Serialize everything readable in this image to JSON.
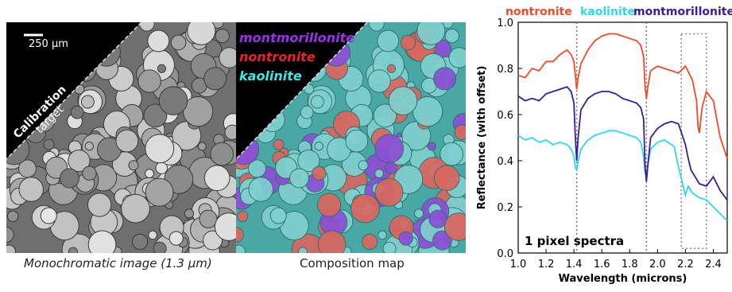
{
  "panels": {
    "mono": {
      "scale_bar": "250 µm",
      "calibration_line1": "Calibration",
      "calibration_line2": "target",
      "caption": "Monochromatic image (1.3 µm)"
    },
    "composition": {
      "legend": [
        "montmorillonite",
        "nontronite",
        "kaolinite"
      ],
      "legend_colors": [
        "#9b30e8",
        "#e8232a",
        "#40e6e6"
      ],
      "caption": "Composition map"
    }
  },
  "chart_data": {
    "type": "line",
    "title": "",
    "xlabel": "Wavelength (microns)",
    "ylabel": "Reflectance (with offset)",
    "xlim": [
      1.0,
      2.5
    ],
    "ylim": [
      0.0,
      1.0
    ],
    "xticks": [
      1.0,
      1.2,
      1.4,
      1.6,
      1.8,
      2.0,
      2.2,
      2.4
    ],
    "xtick_labels": [
      "1.0",
      "1.2",
      "1.4",
      "1.6",
      "1.8",
      "2.0",
      "2.2",
      "2.4"
    ],
    "yticks": [
      0.0,
      0.2,
      0.4,
      0.6,
      0.8,
      1.0
    ],
    "ytick_labels": [
      "0.0",
      "0.2",
      "0.4",
      "0.6",
      "0.8",
      "1.0"
    ],
    "annotation": "1 pixel spectra",
    "reference_lines": [
      1.42,
      1.92
    ],
    "highlight_box": {
      "x": [
        2.17,
        2.35
      ],
      "y": [
        0.02,
        0.95
      ]
    },
    "series": [
      {
        "name": "nontronite",
        "color": "#f24a2a",
        "x": [
          1.0,
          1.05,
          1.1,
          1.15,
          1.2,
          1.25,
          1.3,
          1.35,
          1.38,
          1.4,
          1.41,
          1.42,
          1.43,
          1.45,
          1.5,
          1.55,
          1.6,
          1.65,
          1.7,
          1.75,
          1.8,
          1.85,
          1.88,
          1.9,
          1.91,
          1.92,
          1.93,
          1.95,
          2.0,
          2.05,
          2.1,
          2.15,
          2.2,
          2.25,
          2.28,
          2.29,
          2.3,
          2.32,
          2.35,
          2.4,
          2.45,
          2.5
        ],
        "y": [
          0.77,
          0.76,
          0.8,
          0.79,
          0.83,
          0.83,
          0.86,
          0.88,
          0.86,
          0.83,
          0.77,
          0.71,
          0.76,
          0.82,
          0.88,
          0.92,
          0.94,
          0.95,
          0.95,
          0.94,
          0.93,
          0.92,
          0.9,
          0.85,
          0.72,
          0.67,
          0.72,
          0.79,
          0.81,
          0.8,
          0.79,
          0.78,
          0.81,
          0.75,
          0.66,
          0.55,
          0.52,
          0.63,
          0.7,
          0.66,
          0.5,
          0.41
        ]
      },
      {
        "name": "kaolinite",
        "color": "#31d6f0",
        "x": [
          1.0,
          1.05,
          1.1,
          1.15,
          1.2,
          1.25,
          1.3,
          1.35,
          1.38,
          1.4,
          1.41,
          1.42,
          1.43,
          1.45,
          1.5,
          1.55,
          1.6,
          1.65,
          1.7,
          1.75,
          1.8,
          1.85,
          1.88,
          1.9,
          1.91,
          1.92,
          1.93,
          1.95,
          2.0,
          2.05,
          2.1,
          2.12,
          2.14,
          2.16,
          2.18,
          2.2,
          2.22,
          2.25,
          2.3,
          2.35,
          2.4,
          2.45,
          2.5
        ],
        "y": [
          0.51,
          0.49,
          0.5,
          0.48,
          0.49,
          0.47,
          0.48,
          0.47,
          0.45,
          0.42,
          0.37,
          0.36,
          0.4,
          0.45,
          0.49,
          0.51,
          0.52,
          0.53,
          0.53,
          0.52,
          0.51,
          0.5,
          0.48,
          0.42,
          0.35,
          0.33,
          0.38,
          0.45,
          0.48,
          0.49,
          0.47,
          0.46,
          0.4,
          0.35,
          0.3,
          0.25,
          0.29,
          0.26,
          0.24,
          0.23,
          0.2,
          0.17,
          0.14
        ]
      },
      {
        "name": "montmorillonite",
        "color": "#3c1c9e",
        "x": [
          1.0,
          1.05,
          1.1,
          1.15,
          1.2,
          1.25,
          1.3,
          1.35,
          1.38,
          1.4,
          1.41,
          1.42,
          1.43,
          1.45,
          1.5,
          1.55,
          1.6,
          1.65,
          1.7,
          1.75,
          1.8,
          1.85,
          1.88,
          1.9,
          1.91,
          1.92,
          1.93,
          1.95,
          2.0,
          2.05,
          2.1,
          2.15,
          2.2,
          2.22,
          2.24,
          2.27,
          2.3,
          2.35,
          2.4,
          2.45,
          2.5
        ],
        "y": [
          0.68,
          0.66,
          0.67,
          0.66,
          0.69,
          0.7,
          0.71,
          0.72,
          0.7,
          0.65,
          0.5,
          0.4,
          0.5,
          0.62,
          0.67,
          0.69,
          0.7,
          0.7,
          0.69,
          0.67,
          0.66,
          0.65,
          0.63,
          0.58,
          0.38,
          0.31,
          0.38,
          0.5,
          0.54,
          0.56,
          0.57,
          0.56,
          0.47,
          0.41,
          0.36,
          0.33,
          0.3,
          0.29,
          0.33,
          0.27,
          0.23
        ]
      }
    ]
  }
}
